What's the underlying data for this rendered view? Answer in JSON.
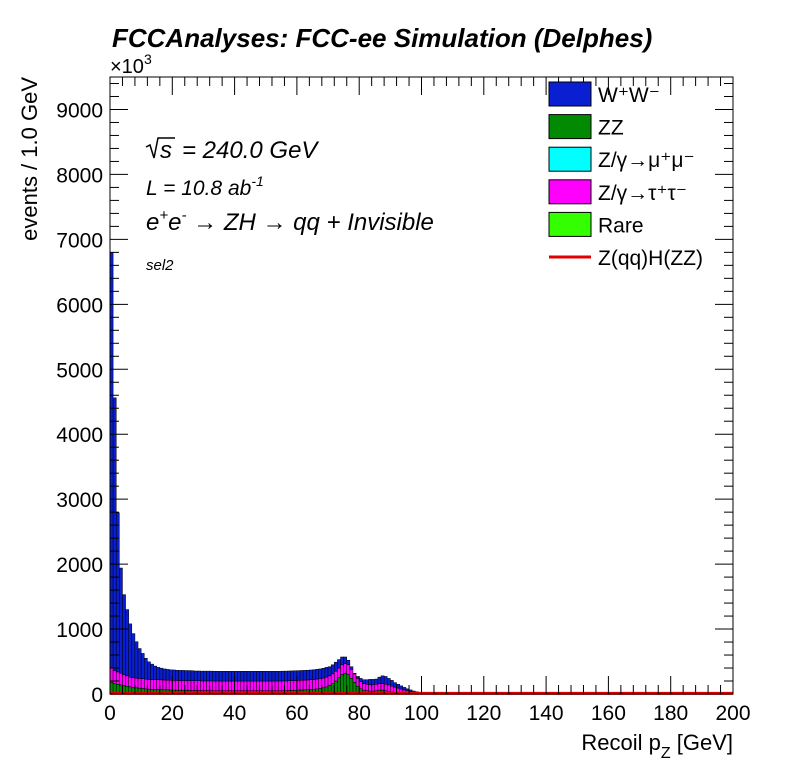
{
  "chart_data": {
    "type": "bar",
    "stacked": true,
    "histogram": true,
    "title": "FCCAnalyses: FCC-ee Simulation (Delphes)",
    "xlabel_main": "Recoil p",
    "xlabel_sub": "Z",
    "xlabel_unit": " [GeV]",
    "ylabel": "events / 1.0 GeV",
    "y_multiplier": "×10",
    "y_multiplier_exp": "3",
    "xlim": [
      0,
      200
    ],
    "ylim": [
      0,
      9500
    ],
    "x_ticks": [
      0,
      20,
      40,
      60,
      80,
      100,
      120,
      140,
      160,
      180,
      200
    ],
    "y_ticks": [
      0,
      1000,
      2000,
      3000,
      4000,
      5000,
      6000,
      7000,
      8000,
      9000
    ],
    "grid": false,
    "legend_position": "top-right",
    "annotations": {
      "sqrt_s": "= 240.0 GeV",
      "lumi_prefix": "L = 10.8 ab",
      "lumi_exp": "-1",
      "process": "→ ZH → qq + Invisible",
      "selection": "sel2"
    },
    "legend": [
      {
        "label": "W⁺W⁻",
        "color": "#0a1fd1",
        "kind": "box"
      },
      {
        "label": "ZZ",
        "color": "#028a02",
        "kind": "box"
      },
      {
        "label": "Z/γ→μ⁺μ⁻",
        "color": "#00ffff",
        "kind": "box"
      },
      {
        "label": "Z/γ→τ⁺τ⁻",
        "color": "#ff00ff",
        "kind": "box"
      },
      {
        "label": "Rare",
        "color": "#33ff00",
        "kind": "box"
      },
      {
        "label": "Z(qq)H(ZZ)",
        "color": "#e00000",
        "kind": "line"
      }
    ],
    "bins": {
      "x_start": 0,
      "width": 1,
      "series": [
        {
          "name": "ZZ",
          "color": "#028a02",
          "values": [
            180,
            160,
            150,
            140,
            130,
            120,
            110,
            100,
            95,
            90,
            85,
            80,
            75,
            70,
            70,
            70,
            68,
            66,
            64,
            62,
            60,
            60,
            58,
            58,
            56,
            56,
            54,
            54,
            54,
            52,
            52,
            52,
            52,
            50,
            50,
            50,
            50,
            50,
            50,
            50,
            50,
            50,
            50,
            50,
            50,
            50,
            50,
            50,
            50,
            50,
            50,
            50,
            50,
            50,
            50,
            52,
            52,
            54,
            56,
            58,
            60,
            62,
            64,
            66,
            70,
            74,
            80,
            86,
            96,
            110,
            130,
            160,
            200,
            250,
            300,
            320,
            300,
            240,
            180,
            120,
            80,
            60,
            50,
            45,
            45,
            50,
            60,
            60,
            50,
            40,
            30,
            25,
            20,
            15,
            12,
            10,
            8,
            6,
            5,
            4,
            3,
            2,
            2,
            1,
            1,
            1
          ]
        },
        {
          "name": "Z/γ→τ⁺τ⁻",
          "color": "#ff00ff",
          "values": [
            220,
            200,
            190,
            180,
            170,
            160,
            150,
            150,
            150,
            150,
            150,
            150,
            150,
            150,
            150,
            150,
            150,
            150,
            150,
            150,
            150,
            150,
            150,
            150,
            150,
            150,
            150,
            150,
            150,
            150,
            150,
            150,
            150,
            150,
            150,
            150,
            150,
            150,
            150,
            150,
            150,
            150,
            150,
            150,
            150,
            150,
            150,
            150,
            150,
            150,
            150,
            150,
            150,
            150,
            150,
            150,
            150,
            150,
            150,
            150,
            150,
            150,
            150,
            150,
            150,
            150,
            150,
            150,
            150,
            150,
            150,
            150,
            150,
            150,
            150,
            150,
            150,
            140,
            130,
            120,
            110,
            100,
            100,
            100,
            100,
            100,
            100,
            100,
            100,
            100,
            90,
            80,
            70,
            60,
            50,
            40,
            30,
            20,
            15,
            10,
            8,
            6,
            4,
            3,
            2,
            1
          ]
        },
        {
          "name": "W⁺W⁻",
          "color": "#0a1fd1",
          "values": [
            6400,
            4200,
            2450,
            1620,
            1230,
            1020,
            820,
            680,
            560,
            460,
            390,
            320,
            270,
            240,
            210,
            190,
            180,
            170,
            165,
            160,
            160,
            155,
            155,
            155,
            155,
            155,
            155,
            150,
            150,
            150,
            150,
            150,
            150,
            150,
            150,
            150,
            150,
            150,
            150,
            150,
            150,
            150,
            150,
            150,
            150,
            150,
            150,
            150,
            150,
            150,
            150,
            150,
            150,
            150,
            150,
            150,
            150,
            150,
            150,
            150,
            150,
            150,
            150,
            150,
            150,
            150,
            150,
            150,
            150,
            150,
            140,
            140,
            140,
            130,
            120,
            100,
            70,
            40,
            10,
            30,
            50,
            60,
            70,
            80,
            80,
            80,
            100,
            120,
            120,
            100,
            90,
            70,
            60,
            50,
            40,
            30,
            25,
            20,
            15,
            10,
            8,
            6,
            5,
            4,
            3,
            2
          ]
        }
      ],
      "signal": {
        "name": "Z(qq)H(ZZ)",
        "color": "#e00000",
        "value": 10
      }
    }
  }
}
